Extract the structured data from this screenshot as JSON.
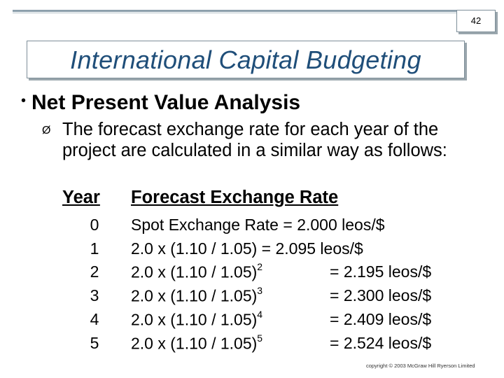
{
  "page_number": "42",
  "title": "International Capital Budgeting",
  "bullet": {
    "marker": "•",
    "text": "Net Present Value Analysis"
  },
  "sub_bullet": {
    "marker": "Ø",
    "text": "The forecast exchange rate for each year of the project are calculated in a similar way as follows:"
  },
  "table": {
    "header_year": "Year",
    "header_rate": "Forecast Exchange Rate",
    "rows": [
      {
        "year": "0",
        "formula": "Spot Exchange Rate = 2.000 leos/$",
        "exp": "",
        "result": ""
      },
      {
        "year": "1",
        "formula": "2.0 x (1.10 / 1.05) = 2.095 leos/$",
        "exp": "",
        "result": ""
      },
      {
        "year": "2",
        "formula": "2.0 x (1.10 / 1.05)",
        "exp": "2",
        "result": "= 2.195 leos/$"
      },
      {
        "year": "3",
        "formula": "2.0 x (1.10 / 1.05)",
        "exp": "3",
        "result": "= 2.300 leos/$"
      },
      {
        "year": "4",
        "formula": "2.0 x (1.10 / 1.05)",
        "exp": "4",
        "result": "= 2.409 leos/$"
      },
      {
        "year": "5",
        "formula": "2.0 x (1.10 / 1.05)",
        "exp": "5",
        "result": "= 2.524 leos/$"
      }
    ]
  },
  "footer": "copyright © 2003 McGraw Hill Ryerson Limited"
}
